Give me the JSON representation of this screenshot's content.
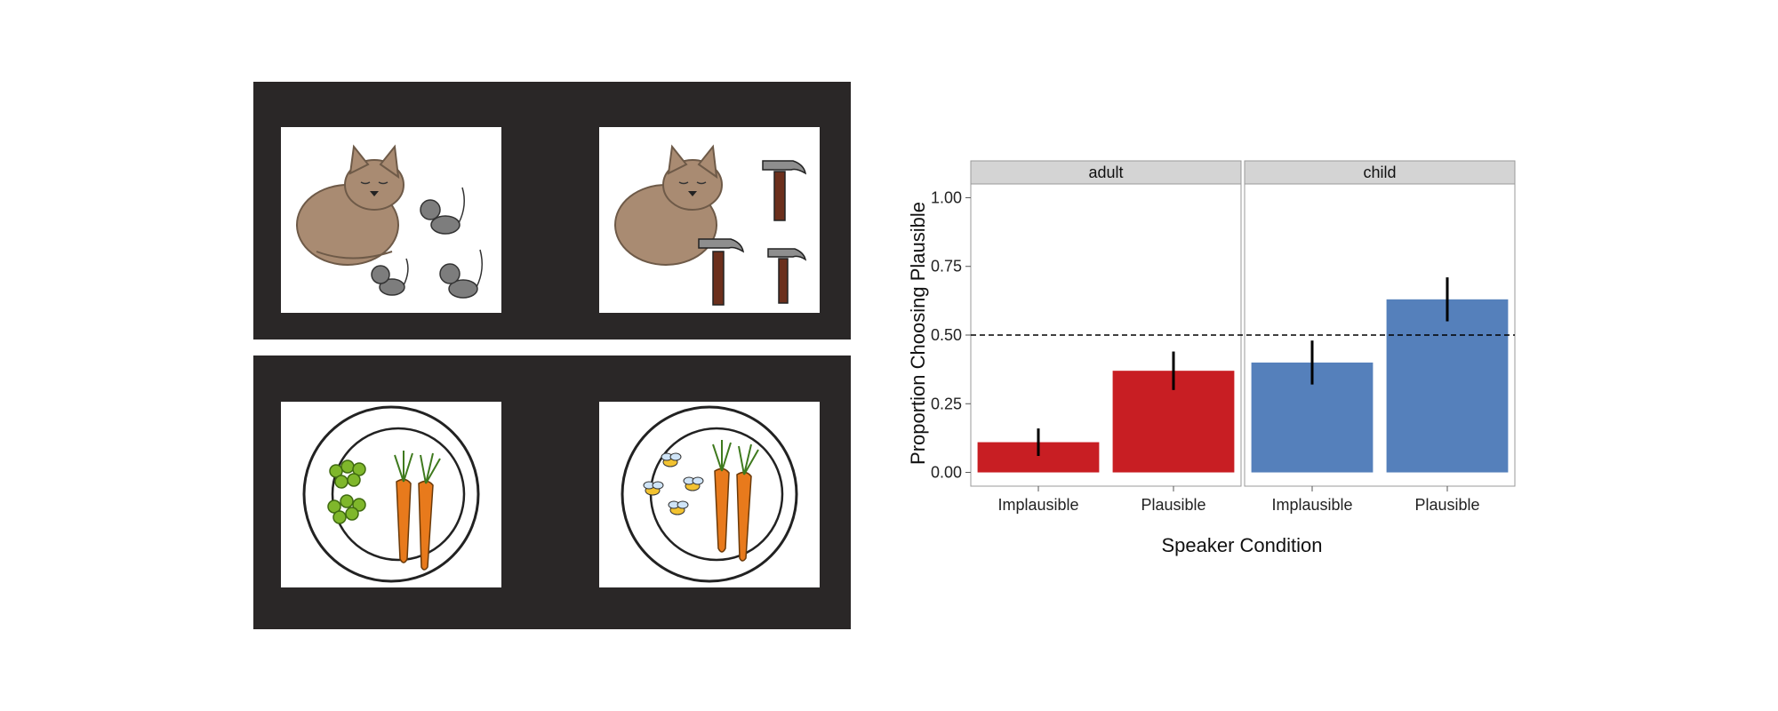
{
  "stimuli": {
    "top_row": [
      {
        "icon": "cat-with-kittens-icon"
      },
      {
        "icon": "cat-with-hammers-icon"
      }
    ],
    "bottom_row": [
      {
        "icon": "plate-peas-carrots-icon"
      },
      {
        "icon": "plate-bees-carrots-icon"
      }
    ]
  },
  "chart_data": {
    "type": "bar",
    "facets": [
      "adult",
      "child"
    ],
    "categories": [
      "Implausible",
      "Plausible"
    ],
    "series": [
      {
        "facet": "adult",
        "values": [
          0.11,
          0.37
        ],
        "error_low": [
          0.06,
          0.3
        ],
        "error_high": [
          0.16,
          0.44
        ],
        "color": "#c81e23"
      },
      {
        "facet": "child",
        "values": [
          0.4,
          0.63
        ],
        "error_low": [
          0.32,
          0.55
        ],
        "error_high": [
          0.48,
          0.71
        ],
        "color": "#5580bb"
      }
    ],
    "xlabel": "Speaker Condition",
    "ylabel": "Proportion Choosing Plausible",
    "ylim": [
      -0.05,
      1.05
    ],
    "yticks": [
      0.0,
      0.25,
      0.5,
      0.75,
      1.0
    ],
    "ytick_labels": [
      "0.00",
      "0.25",
      "0.50",
      "0.75",
      "1.00"
    ],
    "reference_line": 0.5,
    "grid": false
  }
}
